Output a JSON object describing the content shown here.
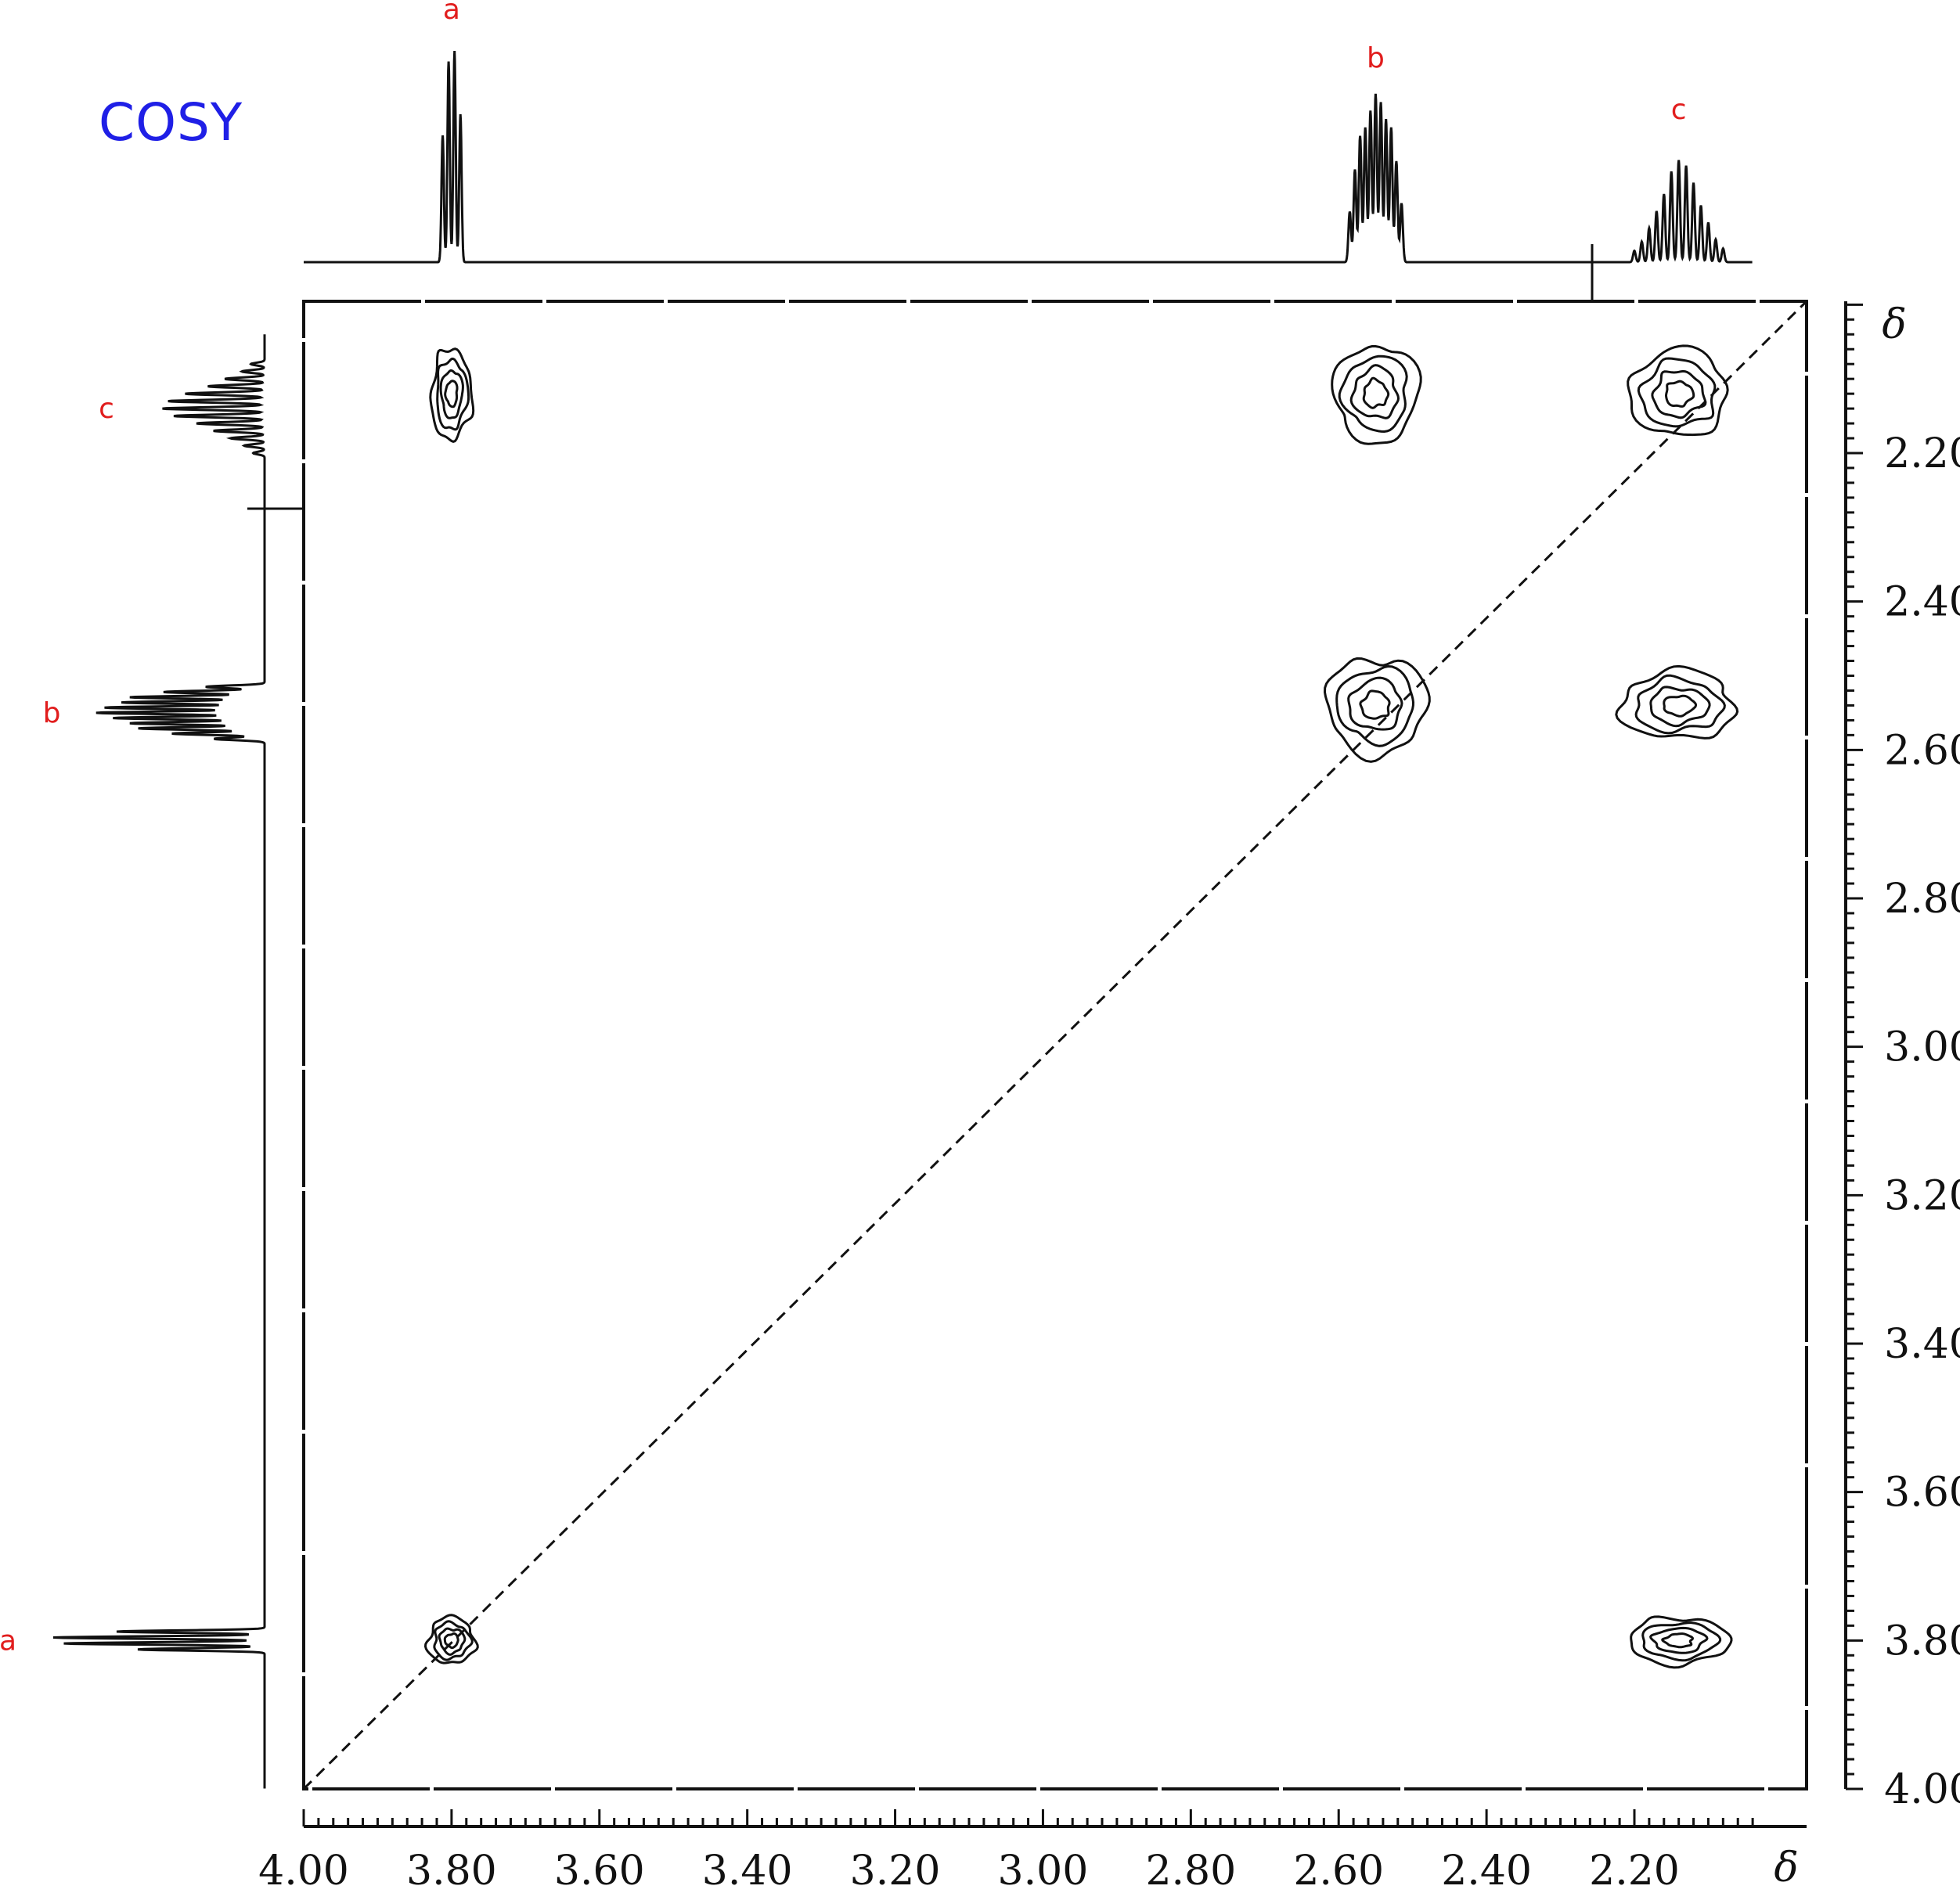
{
  "title": "COSY",
  "colors": {
    "title": "#1f1fe6",
    "peak_labels": "#e11d1d",
    "ink": "#111111"
  },
  "chart_data": {
    "type": "heatmap",
    "subtype": "2D COSY NMR contour plot",
    "title": "COSY",
    "x_axis": {
      "unit": "δ",
      "range": [
        4.0,
        2.04
      ],
      "reversed": true,
      "ticks": [
        "4.00",
        "3.80",
        "3.60",
        "3.40",
        "3.20",
        "3.00",
        "2.80",
        "2.60",
        "2.40",
        "2.20"
      ],
      "tick_values": [
        4.0,
        3.8,
        3.6,
        3.4,
        3.2,
        3.0,
        2.8,
        2.6,
        2.4,
        2.2
      ]
    },
    "y_axis": {
      "unit": "δ",
      "range": [
        2.0,
        4.0
      ],
      "ticks": [
        "2.20",
        "2.40",
        "2.60",
        "2.80",
        "3.00",
        "3.20",
        "3.40",
        "3.60",
        "3.80",
        "4.00"
      ],
      "tick_values": [
        2.2,
        2.4,
        2.6,
        2.8,
        3.0,
        3.2,
        3.4,
        3.6,
        3.8,
        4.0
      ]
    },
    "peak_labels": [
      {
        "label": "a",
        "delta": 3.8
      },
      {
        "label": "b",
        "delta": 2.55
      },
      {
        "label": "c",
        "delta": 2.14
      }
    ],
    "diagonal": true,
    "cross_peaks": [
      {
        "x": 3.8,
        "y": 3.8,
        "type": "diagonal",
        "pair": "a-a"
      },
      {
        "x": 2.55,
        "y": 2.54,
        "type": "diagonal",
        "pair": "b-b"
      },
      {
        "x": 2.14,
        "y": 2.12,
        "type": "diagonal",
        "pair": "c-c"
      },
      {
        "x": 3.8,
        "y": 2.12,
        "type": "cross",
        "pair": "a-c"
      },
      {
        "x": 2.55,
        "y": 2.12,
        "type": "cross",
        "pair": "b-c"
      },
      {
        "x": 2.14,
        "y": 2.54,
        "type": "cross",
        "pair": "c-b"
      },
      {
        "x": 2.14,
        "y": 3.8,
        "type": "cross",
        "pair": "c-a"
      }
    ]
  }
}
